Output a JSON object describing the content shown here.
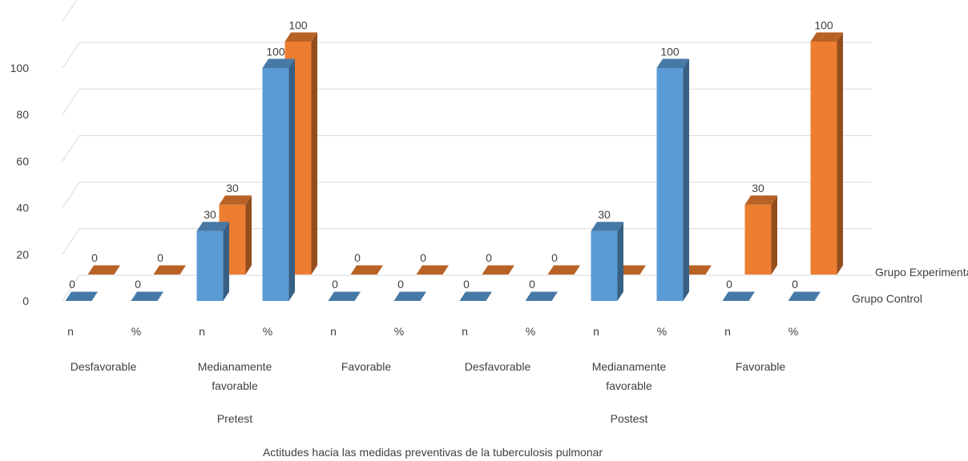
{
  "chart_data": {
    "type": "bar",
    "chart_style": "3d-clustered-column",
    "grid": true,
    "ylim": [
      0,
      100
    ],
    "yticks": [
      0,
      20,
      40,
      60,
      80,
      100
    ],
    "categories": [
      {
        "phase": "Pretest",
        "level": "Desfavorable",
        "measure": "n"
      },
      {
        "phase": "Pretest",
        "level": "Desfavorable",
        "measure": "%"
      },
      {
        "phase": "Pretest",
        "level": "Medianamente favorable",
        "measure": "n"
      },
      {
        "phase": "Pretest",
        "level": "Medianamente favorable",
        "measure": "%"
      },
      {
        "phase": "Pretest",
        "level": "Favorable",
        "measure": "n"
      },
      {
        "phase": "Pretest",
        "level": "Favorable",
        "measure": "%"
      },
      {
        "phase": "Postest",
        "level": "Desfavorable",
        "measure": "n"
      },
      {
        "phase": "Postest",
        "level": "Desfavorable",
        "measure": "%"
      },
      {
        "phase": "Postest",
        "level": "Medianamente favorable",
        "measure": "n"
      },
      {
        "phase": "Postest",
        "level": "Medianamente favorable",
        "measure": "%"
      },
      {
        "phase": "Postest",
        "level": "Favorable",
        "measure": "n"
      },
      {
        "phase": "Postest",
        "level": "Favorable",
        "measure": "%"
      }
    ],
    "level_groups": [
      {
        "label": "Desfavorable"
      },
      {
        "label": "Medianamente\nfavorable"
      },
      {
        "label": "Favorable"
      },
      {
        "label": "Desfavorable"
      },
      {
        "label": "Medianamente\nfavorable"
      },
      {
        "label": "Favorable"
      }
    ],
    "phase_groups": [
      {
        "label": "Pretest"
      },
      {
        "label": "Postest"
      }
    ],
    "series": [
      {
        "name": "Grupo Control",
        "color": "#5b9bd5",
        "values": [
          0,
          0,
          30,
          100,
          0,
          0,
          0,
          0,
          30,
          100,
          0,
          0
        ]
      },
      {
        "name": "Grupo Experimental",
        "color": "#ed7d31",
        "values": [
          0,
          0,
          30,
          100,
          0,
          0,
          0,
          0,
          0,
          0,
          30,
          100
        ]
      }
    ],
    "xlabel": "Actitudes hacia las medidas preventivas de la tuberculosis pulmonar",
    "ylabel": "",
    "title": ""
  }
}
